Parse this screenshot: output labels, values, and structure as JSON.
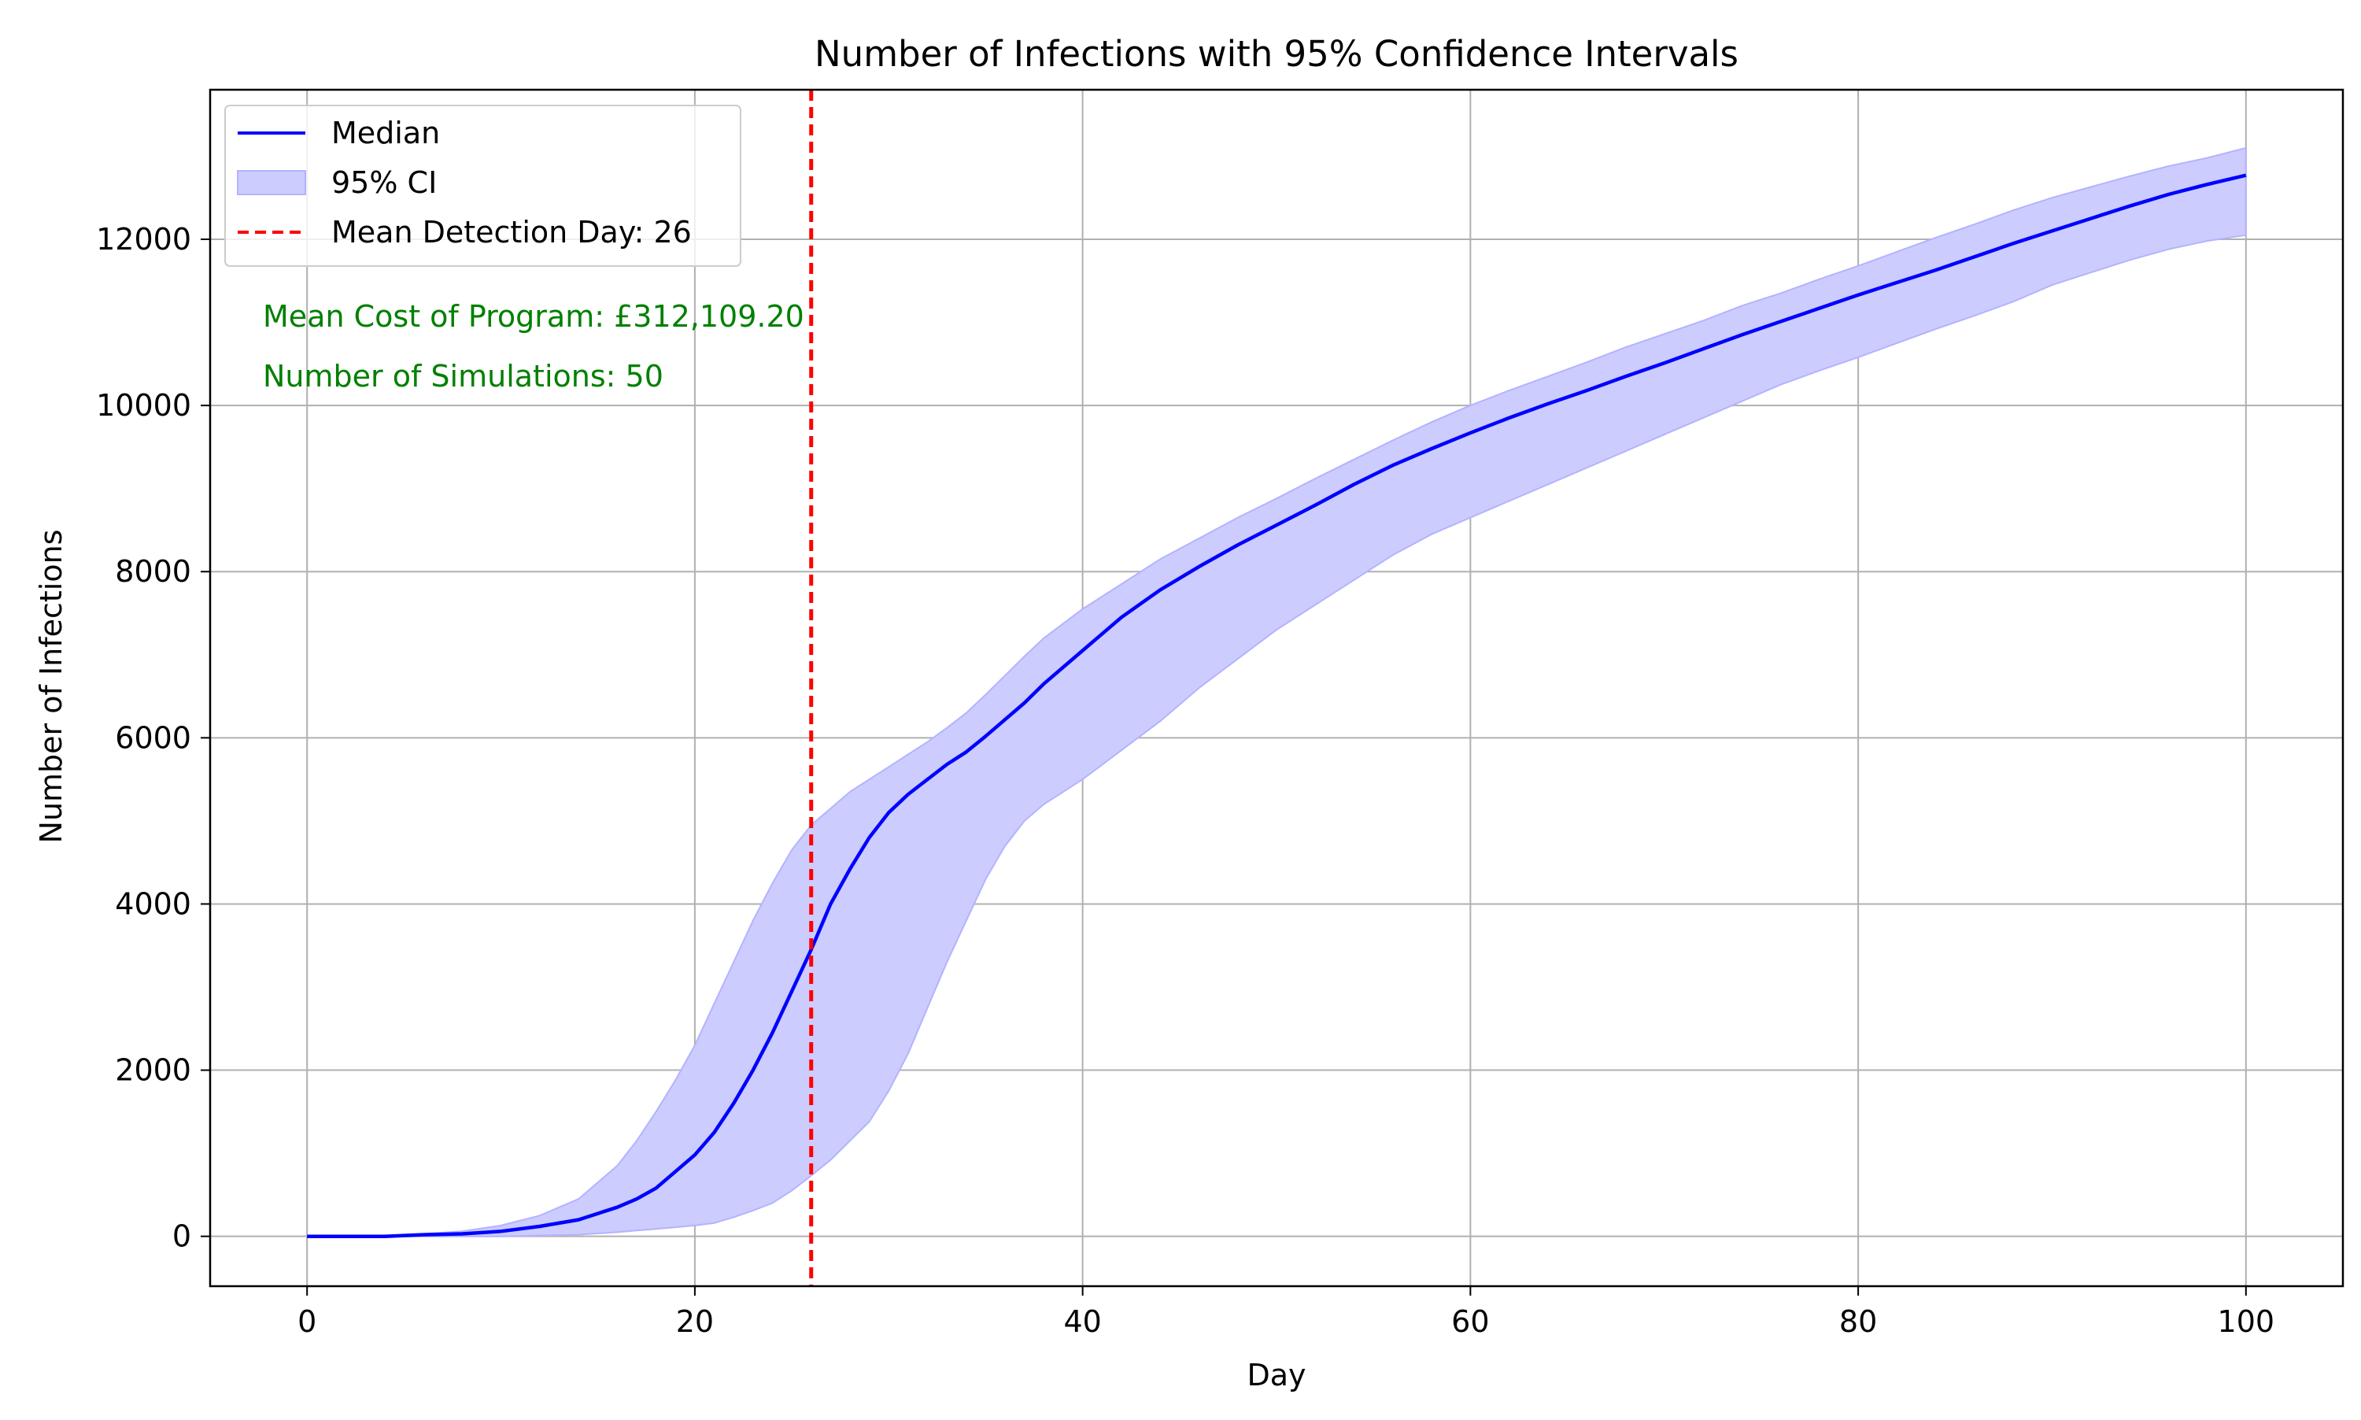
{
  "chart_data": {
    "type": "line",
    "title": "Number of Infections with 95% Confidence Intervals",
    "xlabel": "Day",
    "ylabel": "Number of Infections",
    "xlim": [
      -5,
      105
    ],
    "ylim": [
      -600,
      13800
    ],
    "xticks": [
      0,
      20,
      40,
      60,
      80,
      100
    ],
    "yticks": [
      0,
      2000,
      4000,
      6000,
      8000,
      10000,
      12000
    ],
    "grid": true,
    "legend_position": "top-left",
    "legend": {
      "median_label": "Median",
      "ci_label": "95% CI",
      "detection_label": "Mean Detection Day: 26"
    },
    "annotations": {
      "cost": "Mean Cost of Program: £312,109.20",
      "simulations": "Number of Simulations: 50"
    },
    "colors": {
      "median": "#0000ff",
      "ci_fill": "#ccccff",
      "ci_edge": "#b3b3ff",
      "detection": "#ff0000",
      "annotation": "#008000",
      "grid": "#b0b0b0"
    },
    "detection_day": 26,
    "series": [
      {
        "name": "Median",
        "x": [
          0,
          2,
          4,
          6,
          8,
          10,
          12,
          14,
          16,
          17,
          18,
          19,
          20,
          21,
          22,
          23,
          24,
          25,
          26,
          27,
          28,
          29,
          30,
          31,
          32,
          33,
          34,
          35,
          36,
          37,
          38,
          40,
          42,
          44,
          46,
          48,
          50,
          52,
          54,
          56,
          58,
          60,
          62,
          64,
          66,
          68,
          70,
          72,
          74,
          76,
          78,
          80,
          82,
          84,
          86,
          88,
          90,
          92,
          94,
          96,
          98,
          100
        ],
        "y": [
          0,
          0,
          0,
          20,
          30,
          60,
          120,
          200,
          350,
          450,
          580,
          780,
          980,
          1250,
          1600,
          2000,
          2450,
          2950,
          3450,
          4000,
          4420,
          4800,
          5100,
          5320,
          5500,
          5680,
          5830,
          6020,
          6220,
          6420,
          6650,
          7050,
          7450,
          7780,
          8060,
          8320,
          8560,
          8800,
          9050,
          9280,
          9480,
          9670,
          9850,
          10020,
          10180,
          10350,
          10510,
          10680,
          10850,
          11010,
          11170,
          11330,
          11480,
          11630,
          11790,
          11950,
          12100,
          12250,
          12400,
          12540,
          12660,
          12770
        ]
      },
      {
        "name": "95% CI",
        "x": [
          0,
          2,
          4,
          6,
          8,
          10,
          12,
          14,
          16,
          17,
          18,
          19,
          20,
          21,
          22,
          23,
          24,
          25,
          26,
          27,
          28,
          29,
          30,
          31,
          32,
          33,
          34,
          35,
          36,
          37,
          38,
          40,
          42,
          44,
          46,
          48,
          50,
          52,
          54,
          56,
          58,
          60,
          62,
          64,
          66,
          68,
          70,
          72,
          74,
          76,
          78,
          80,
          82,
          84,
          86,
          88,
          90,
          92,
          94,
          96,
          98,
          100
        ],
        "lower": [
          0,
          0,
          0,
          0,
          0,
          0,
          10,
          20,
          50,
          70,
          90,
          110,
          130,
          160,
          230,
          310,
          400,
          550,
          730,
          920,
          1150,
          1380,
          1750,
          2200,
          2750,
          3300,
          3800,
          4300,
          4700,
          5000,
          5200,
          5500,
          5850,
          6200,
          6600,
          6950,
          7300,
          7600,
          7900,
          8200,
          8450,
          8650,
          8850,
          9050,
          9250,
          9450,
          9650,
          9850,
          10050,
          10250,
          10420,
          10580,
          10750,
          10920,
          11080,
          11250,
          11450,
          11600,
          11750,
          11880,
          11980,
          12050
        ],
        "upper": [
          0,
          0,
          0,
          30,
          60,
          130,
          250,
          450,
          850,
          1150,
          1500,
          1880,
          2300,
          2800,
          3300,
          3800,
          4250,
          4650,
          4950,
          5150,
          5350,
          5500,
          5650,
          5800,
          5950,
          6120,
          6300,
          6520,
          6750,
          6980,
          7200,
          7550,
          7850,
          8150,
          8400,
          8650,
          8880,
          9120,
          9350,
          9580,
          9800,
          10000,
          10180,
          10350,
          10520,
          10700,
          10860,
          11020,
          11200,
          11350,
          11520,
          11680,
          11850,
          12020,
          12180,
          12350,
          12500,
          12630,
          12760,
          12880,
          12980,
          13100
        ]
      }
    ]
  }
}
